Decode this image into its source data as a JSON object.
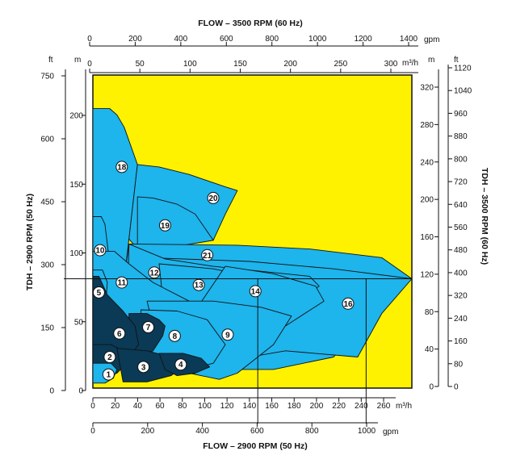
{
  "chart_data": {
    "type": "area",
    "title": "",
    "colors": {
      "background": "#FFF200",
      "light_zone": "#1EB4EC",
      "dark_zone": "#0A3A55",
      "outline": "#111111"
    },
    "axes": {
      "x_bottom_primary": {
        "label": "FLOW – 2900 RPM (50 Hz)",
        "unit": "m³/h",
        "ticks": [
          "0",
          "20",
          "40",
          "60",
          "80",
          "100",
          "120",
          "140",
          "160",
          "180",
          "200",
          "220",
          "240",
          "260"
        ],
        "range": [
          0,
          265
        ]
      },
      "x_bottom_secondary": {
        "unit": "gpm",
        "ticks": [
          "0",
          "200",
          "400",
          "600",
          "800",
          "1000"
        ]
      },
      "x_top_primary": {
        "label": "FLOW – 3500 RPM (60 Hz)",
        "unit": "gpm",
        "ticks": [
          "0",
          "200",
          "400",
          "600",
          "800",
          "1000",
          "1200",
          "1400"
        ]
      },
      "x_top_secondary": {
        "unit": "m³/h",
        "ticks": [
          "0",
          "50",
          "100",
          "150",
          "200",
          "250",
          "300"
        ]
      },
      "y_left_ft": {
        "label": "TDH – 2900 RPM (50 Hz)",
        "unit": "ft",
        "ticks": [
          "0",
          "150",
          "300",
          "450",
          "600",
          "750"
        ]
      },
      "y_left_m": {
        "unit": "m",
        "ticks": [
          "0",
          "50",
          "100",
          "150",
          "200"
        ],
        "range": [
          0,
          252
        ]
      },
      "y_right_m": {
        "label": "TDH – 3500 RPM (60 Hz)",
        "unit": "m",
        "ticks": [
          "0",
          "40",
          "80",
          "120",
          "160",
          "200",
          "240",
          "280",
          "320"
        ]
      },
      "y_right_ft": {
        "unit": "ft",
        "ticks": [
          "0",
          "80",
          "160",
          "240",
          "320",
          "400",
          "480",
          "560",
          "640",
          "720",
          "800",
          "880",
          "960",
          "1040",
          "1120"
        ]
      }
    },
    "reference_lines": {
      "head_m": 88,
      "flow_m3h": [
        137,
        227
      ]
    },
    "zones": [
      {
        "label": "18",
        "tone": "light",
        "label_at": [
          24,
          178
        ],
        "points": [
          [
            0,
            225
          ],
          [
            14,
            225
          ],
          [
            20,
            220
          ],
          [
            26,
            210
          ],
          [
            37,
            180
          ],
          [
            30,
            120
          ],
          [
            27,
            95
          ],
          [
            0,
            95
          ]
        ]
      },
      {
        "label": "10",
        "tone": "light",
        "label_at": [
          6,
          111
        ],
        "points": [
          [
            0,
            138
          ],
          [
            7,
            138
          ],
          [
            10,
            132
          ],
          [
            14,
            100
          ],
          [
            12,
            85
          ],
          [
            0,
            85
          ]
        ]
      },
      {
        "label": "20",
        "tone": "light",
        "label_at": [
          100,
          153
        ],
        "points": [
          [
            37,
            180
          ],
          [
            55,
            178
          ],
          [
            80,
            172
          ],
          [
            110,
            162
          ],
          [
            120,
            159
          ],
          [
            110,
            140
          ],
          [
            100,
            119
          ],
          [
            56,
            112
          ],
          [
            37,
            112
          ],
          [
            30,
            120
          ]
        ]
      },
      {
        "label": "19",
        "tone": "light",
        "label_at": [
          60,
          131
        ],
        "points": [
          [
            37,
            154
          ],
          [
            50,
            153
          ],
          [
            70,
            148
          ],
          [
            85,
            140
          ],
          [
            100,
            119
          ],
          [
            56,
            112
          ],
          [
            37,
            112
          ]
        ]
      },
      {
        "label": "21",
        "tone": "light",
        "label_at": [
          95,
          107
        ],
        "points": [
          [
            30,
            116
          ],
          [
            120,
            115
          ],
          [
            180,
            112
          ],
          [
            240,
            105
          ],
          [
            265,
            88
          ],
          [
            248,
            75
          ],
          [
            200,
            25
          ],
          [
            150,
            15
          ],
          [
            80,
            15
          ],
          [
            40,
            15
          ],
          [
            30,
            25
          ],
          [
            27,
            95
          ]
        ]
      },
      {
        "label": "16",
        "tone": "light",
        "label_at": [
          212,
          68
        ],
        "points": [
          [
            45,
            105
          ],
          [
            130,
            102
          ],
          [
            200,
            96
          ],
          [
            265,
            88
          ],
          [
            240,
            60
          ],
          [
            220,
            25
          ],
          [
            160,
            30
          ],
          [
            100,
            20
          ],
          [
            60,
            30
          ],
          [
            45,
            55
          ]
        ]
      },
      {
        "label": "12",
        "tone": "light",
        "label_at": [
          51,
          93
        ],
        "points": [
          [
            30,
            116
          ],
          [
            60,
            104
          ],
          [
            100,
            98
          ],
          [
            150,
            93
          ],
          [
            180,
            90
          ],
          [
            188,
            82
          ],
          [
            150,
            60
          ],
          [
            130,
            45
          ],
          [
            90,
            35
          ],
          [
            45,
            35
          ],
          [
            28,
            40
          ]
        ]
      },
      {
        "label": "13",
        "tone": "light",
        "label_at": [
          88,
          83
        ],
        "points": [
          [
            55,
            100
          ],
          [
            100,
            96
          ],
          [
            140,
            88
          ],
          [
            150,
            70
          ],
          [
            100,
            55
          ],
          [
            60,
            55
          ]
        ]
      },
      {
        "label": "14",
        "tone": "light",
        "label_at": [
          135,
          78
        ],
        "points": [
          [
            110,
            98
          ],
          [
            150,
            92
          ],
          [
            185,
            82
          ],
          [
            192,
            70
          ],
          [
            160,
            50
          ],
          [
            120,
            45
          ],
          [
            80,
            55
          ]
        ]
      },
      {
        "label": "11",
        "tone": "light",
        "label_at": [
          24,
          85
        ],
        "points": [
          [
            0,
            110
          ],
          [
            18,
            110
          ],
          [
            30,
            100
          ],
          [
            50,
            85
          ],
          [
            80,
            70
          ],
          [
            60,
            50
          ],
          [
            20,
            30
          ],
          [
            0,
            30
          ]
        ]
      },
      {
        "label": "9",
        "tone": "light",
        "label_at": [
          112,
          43
        ],
        "points": [
          [
            45,
            70
          ],
          [
            100,
            70
          ],
          [
            140,
            65
          ],
          [
            165,
            58
          ],
          [
            150,
            35
          ],
          [
            120,
            12
          ],
          [
            105,
            7
          ],
          [
            80,
            12
          ],
          [
            60,
            35
          ],
          [
            50,
            50
          ]
        ]
      },
      {
        "label": "8",
        "tone": "light",
        "label_at": [
          68,
          42
        ],
        "points": [
          [
            40,
            63
          ],
          [
            70,
            62
          ],
          [
            95,
            55
          ],
          [
            110,
            35
          ],
          [
            100,
            20
          ],
          [
            80,
            15
          ],
          [
            55,
            20
          ],
          [
            40,
            30
          ]
        ]
      },
      {
        "label": "5",
        "tone": "light",
        "label_at": [
          5,
          77
        ],
        "points": [
          [
            0,
            95
          ],
          [
            8,
            95
          ],
          [
            12,
            85
          ],
          [
            10,
            60
          ],
          [
            0,
            55
          ]
        ]
      },
      {
        "label": "7",
        "tone": "dark",
        "label_at": [
          46,
          49
        ],
        "points": [
          [
            30,
            60
          ],
          [
            45,
            60
          ],
          [
            55,
            55
          ],
          [
            60,
            50
          ],
          [
            58,
            42
          ],
          [
            50,
            30
          ],
          [
            38,
            25
          ],
          [
            30,
            30
          ]
        ]
      },
      {
        "label": "6",
        "tone": "dark",
        "label_at": [
          22,
          44
        ],
        "points": [
          [
            0,
            90
          ],
          [
            5,
            90
          ],
          [
            12,
            75
          ],
          [
            25,
            62
          ],
          [
            35,
            50
          ],
          [
            38,
            35
          ],
          [
            30,
            25
          ],
          [
            15,
            20
          ],
          [
            0,
            20
          ]
        ]
      },
      {
        "label": "2",
        "tone": "dark",
        "label_at": [
          14,
          25
        ],
        "points": [
          [
            0,
            35
          ],
          [
            15,
            35
          ],
          [
            25,
            30
          ],
          [
            28,
            20
          ],
          [
            20,
            12
          ],
          [
            10,
            8
          ],
          [
            0,
            8
          ]
        ]
      },
      {
        "label": "3",
        "tone": "dark",
        "label_at": [
          42,
          17
        ],
        "points": [
          [
            20,
            32
          ],
          [
            45,
            30
          ],
          [
            65,
            25
          ],
          [
            75,
            18
          ],
          [
            65,
            10
          ],
          [
            45,
            5
          ],
          [
            25,
            5
          ]
        ]
      },
      {
        "label": "4",
        "tone": "dark",
        "label_at": [
          73,
          19
        ],
        "points": [
          [
            55,
            28
          ],
          [
            75,
            28
          ],
          [
            90,
            24
          ],
          [
            97,
            17
          ],
          [
            85,
            12
          ],
          [
            70,
            10
          ],
          [
            60,
            15
          ]
        ]
      },
      {
        "label": "1",
        "tone": "light",
        "label_at": [
          13,
          11
        ],
        "points": [
          [
            0,
            20
          ],
          [
            15,
            20
          ],
          [
            20,
            15
          ],
          [
            17,
            8
          ],
          [
            10,
            4
          ],
          [
            0,
            4
          ]
        ]
      }
    ]
  }
}
